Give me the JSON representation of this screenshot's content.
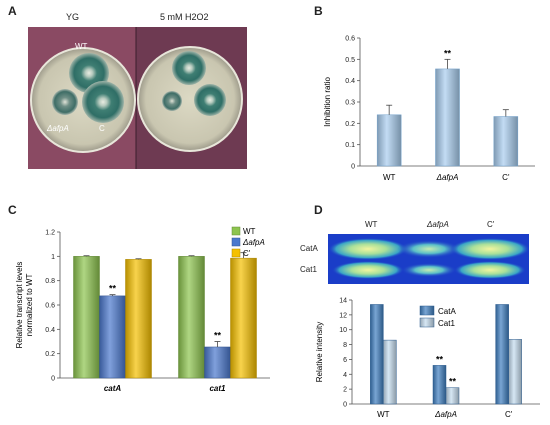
{
  "panels": {
    "A": {
      "letter": "A",
      "left_title": "YG",
      "right_title": "5 mM H2O2",
      "strain_wt": "WT",
      "strain_mut": "ΔafpA",
      "strain_c": "C"
    },
    "B": {
      "letter": "B",
      "ylabel": "Inhibition ratio"
    },
    "C": {
      "letter": "C",
      "ylabel_line1": "Relative transcript levels",
      "ylabel_line2": "normalized to WT"
    },
    "D": {
      "letter": "D",
      "gel_cols": [
        "WT",
        "ΔafpA",
        "C'"
      ],
      "gel_rows": [
        "CatA",
        "Cat1"
      ],
      "ylabel": "Relative intensity"
    }
  },
  "colors": {
    "b_bar": "#a9cdef",
    "green": "#8dc44e",
    "blue": "#4a78cd",
    "gold": "#f5c000",
    "d_dark": "#3f7fc0",
    "d_light": "#c5dcef",
    "gel_bg": "#1a3dc8",
    "plate_bg": "#7a3f5a"
  },
  "chart_data": [
    {
      "panel": "B",
      "type": "bar",
      "categories": [
        "WT",
        "ΔafpA",
        "C'"
      ],
      "values": [
        0.24,
        0.455,
        0.232
      ],
      "errors": [
        0.045,
        0.045,
        0.032
      ],
      "significance": [
        "",
        "**",
        ""
      ],
      "ylabel": "Inhibition ratio",
      "ylim": [
        0,
        0.6
      ],
      "yticks": [
        0,
        0.1,
        0.2,
        0.3,
        0.4,
        0.5,
        0.6
      ]
    },
    {
      "panel": "C",
      "type": "bar",
      "categories": [
        "catA",
        "cat1"
      ],
      "series": [
        {
          "name": "WT",
          "values": [
            1.0,
            1.0
          ],
          "errors": [
            0.005,
            0.005
          ]
        },
        {
          "name": "ΔafpA",
          "values": [
            0.675,
            0.255
          ],
          "errors": [
            0.01,
            0.045
          ]
        },
        {
          "name": "C'",
          "values": [
            0.975,
            0.985
          ],
          "errors": [
            0.005,
            0.045
          ]
        }
      ],
      "significance": [
        [
          "",
          "**",
          ""
        ],
        [
          "",
          "**",
          ""
        ]
      ],
      "ylabel": "Relative transcript levels normalized to WT",
      "ylim": [
        0,
        1.2
      ],
      "yticks": [
        0,
        0.2,
        0.4,
        0.6,
        0.8,
        1,
        1.2
      ],
      "legend": "top-right"
    },
    {
      "panel": "D",
      "type": "bar",
      "categories": [
        "WT",
        "ΔafpA",
        "C'"
      ],
      "series": [
        {
          "name": "CatA",
          "values": [
            13.4,
            5.2,
            13.4
          ]
        },
        {
          "name": "Cat1",
          "values": [
            8.6,
            2.2,
            8.7
          ]
        }
      ],
      "significance": [
        [
          "",
          ""
        ],
        [
          "**",
          "**"
        ],
        [
          "",
          ""
        ]
      ],
      "ylabel": "Relative intensity",
      "ylim": [
        0,
        14
      ],
      "yticks": [
        0,
        2,
        4,
        6,
        8,
        10,
        12,
        14
      ],
      "legend": "top-center"
    }
  ]
}
